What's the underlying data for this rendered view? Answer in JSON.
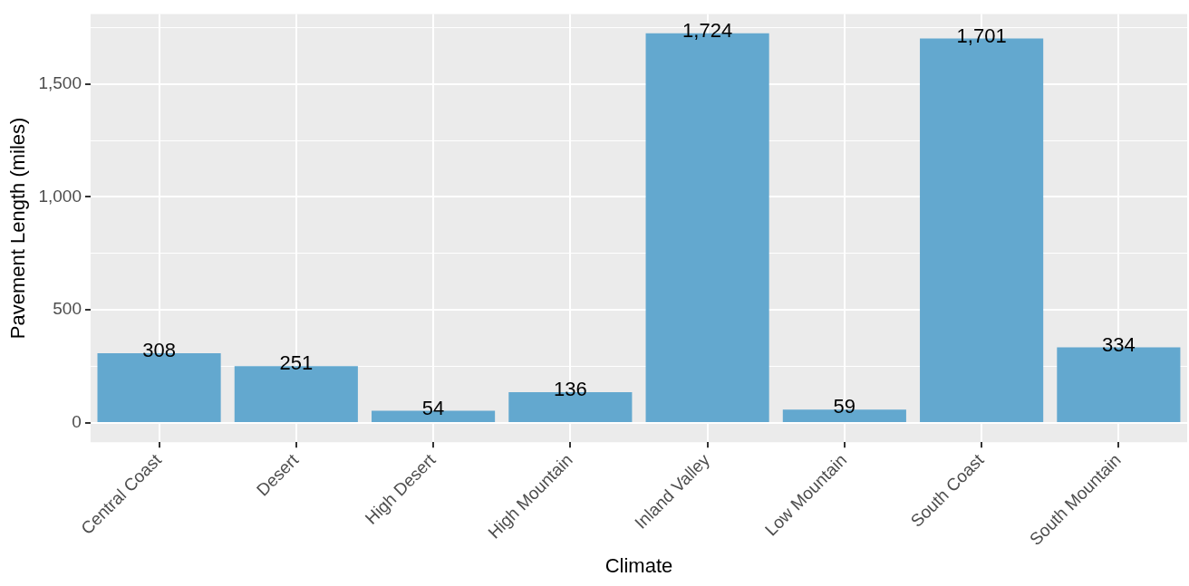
{
  "chart_data": {
    "type": "bar",
    "xlabel": "Climate",
    "ylabel": "Pavement Length (miles)",
    "categories": [
      "Central Coast",
      "Desert",
      "High Desert",
      "High Mountain",
      "Inland Valley",
      "Low Mountain",
      "South Coast",
      "South Mountain"
    ],
    "values": [
      308,
      251,
      54,
      136,
      1724,
      59,
      1701,
      334
    ],
    "value_labels": [
      "308",
      "251",
      "54",
      "136",
      "1,724",
      "59",
      "1,701",
      "334"
    ],
    "color": "#63a8cf",
    "ylim": [
      -86,
      1810
    ],
    "yticks": [
      {
        "value": 0,
        "label": "0"
      },
      {
        "value": 250,
        "label": null
      },
      {
        "value": 500,
        "label": "500"
      },
      {
        "value": 750,
        "label": null
      },
      {
        "value": 1000,
        "label": "1,000"
      },
      {
        "value": 1250,
        "label": null
      },
      {
        "value": 1500,
        "label": "1,500"
      },
      {
        "value": 1750,
        "label": null
      }
    ],
    "grid": true
  }
}
